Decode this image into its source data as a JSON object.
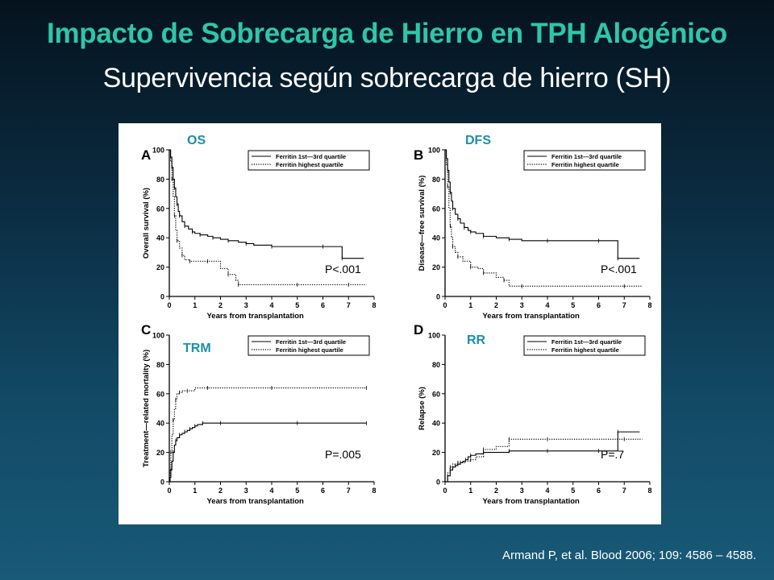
{
  "slide": {
    "title": "Impacto de Sobrecarga de Hierro en TPH Alogénico",
    "subtitle": "Supervivencia según sobrecarga de hierro (SH)",
    "citation": "Armand P, et al. Blood 2006; 109: 4586 – 4588."
  },
  "colors": {
    "title": "#2fc6a8",
    "annotation": "#1a8fb0",
    "background_top": "#05131e",
    "background_bottom": "#185a78"
  },
  "legend": {
    "solid": "Ferritin 1st—3rd quartile",
    "dotted": "Ferritin highest quartile"
  },
  "chart_data": [
    {
      "panel": "A",
      "annotation": "OS",
      "type": "line",
      "xlabel": "Years from transplantation",
      "ylabel": "Overall survival (%)",
      "xlim": [
        0,
        8
      ],
      "ylim": [
        0,
        100
      ],
      "xticks": [
        0,
        1,
        2,
        3,
        4,
        5,
        6,
        7,
        8
      ],
      "yticks": [
        0,
        20,
        40,
        60,
        80,
        100
      ],
      "pvalue": "P<.001",
      "legend_position": "top-right",
      "series": [
        {
          "name": "Ferritin 1st—3rd quartile",
          "style": "solid",
          "x": [
            0,
            0.05,
            0.1,
            0.15,
            0.2,
            0.25,
            0.3,
            0.35,
            0.4,
            0.5,
            0.6,
            0.75,
            0.9,
            1.0,
            1.2,
            1.5,
            1.7,
            2.0,
            2.3,
            2.7,
            3.0,
            3.3,
            4.0,
            5.0,
            6.0,
            6.7,
            6.75,
            7.6
          ],
          "y": [
            100,
            95,
            88,
            80,
            74,
            68,
            63,
            58,
            55,
            51,
            48,
            46,
            44,
            43,
            42,
            41,
            40,
            39,
            38,
            37,
            36,
            35,
            34,
            34,
            34,
            34,
            26,
            26
          ]
        },
        {
          "name": "Ferritin highest quartile",
          "style": "dotted",
          "x": [
            0,
            0.05,
            0.1,
            0.15,
            0.2,
            0.25,
            0.3,
            0.4,
            0.5,
            0.6,
            0.8,
            1.0,
            1.5,
            2.0,
            2.3,
            2.6,
            2.7,
            3.5,
            5.0,
            6.0,
            7.0,
            7.7
          ],
          "y": [
            100,
            92,
            80,
            68,
            55,
            45,
            38,
            33,
            28,
            25,
            24,
            24,
            24,
            19,
            15,
            11,
            8,
            8,
            8,
            8,
            8,
            8
          ]
        }
      ]
    },
    {
      "panel": "B",
      "annotation": "DFS",
      "type": "line",
      "xlabel": "Years from transplantation",
      "ylabel": "Disease—free survival (%)",
      "xlim": [
        0,
        8
      ],
      "ylim": [
        0,
        100
      ],
      "xticks": [
        0,
        1,
        2,
        3,
        4,
        5,
        6,
        7,
        8
      ],
      "yticks": [
        0,
        20,
        40,
        60,
        80,
        100
      ],
      "pvalue": "P<.001",
      "legend_position": "top-right",
      "series": [
        {
          "name": "Ferritin 1st—3rd quartile",
          "style": "solid",
          "x": [
            0,
            0.05,
            0.1,
            0.15,
            0.2,
            0.25,
            0.3,
            0.4,
            0.5,
            0.6,
            0.75,
            0.9,
            1.0,
            1.2,
            1.5,
            2.0,
            2.5,
            3.0,
            4.0,
            5.0,
            6.0,
            6.7,
            6.75,
            7.6
          ],
          "y": [
            100,
            94,
            86,
            78,
            71,
            65,
            60,
            56,
            53,
            50,
            47,
            45,
            44,
            43,
            41,
            40,
            39,
            38,
            38,
            38,
            38,
            38,
            26,
            26
          ]
        },
        {
          "name": "Ferritin highest quartile",
          "style": "dotted",
          "x": [
            0,
            0.05,
            0.1,
            0.15,
            0.2,
            0.25,
            0.3,
            0.4,
            0.5,
            0.7,
            1.0,
            1.3,
            1.5,
            2.0,
            2.3,
            2.5,
            3.0,
            5.0,
            7.0,
            7.7
          ],
          "y": [
            100,
            90,
            75,
            60,
            48,
            40,
            34,
            30,
            27,
            24,
            20,
            19,
            16,
            13,
            11,
            7,
            7,
            7,
            7,
            7
          ]
        }
      ]
    },
    {
      "panel": "C",
      "annotation": "TRM",
      "type": "line",
      "xlabel": "Years from transplantation",
      "ylabel": "Treatment—related mortality (%)",
      "xlim": [
        0,
        8
      ],
      "ylim": [
        0,
        100
      ],
      "xticks": [
        0,
        1,
        2,
        3,
        4,
        5,
        6,
        7,
        8
      ],
      "yticks": [
        0,
        20,
        40,
        60,
        80,
        100
      ],
      "pvalue": "P=.005",
      "legend_position": "top-right",
      "series": [
        {
          "name": "Ferritin 1st—3rd quartile",
          "style": "solid",
          "x": [
            0,
            0.03,
            0.06,
            0.1,
            0.15,
            0.2,
            0.25,
            0.3,
            0.4,
            0.5,
            0.6,
            0.7,
            0.8,
            0.9,
            1.0,
            1.1,
            1.3,
            1.6,
            2.0,
            3.0,
            5.0,
            7.0,
            7.7
          ],
          "y": [
            0,
            3,
            8,
            14,
            20,
            25,
            28,
            30,
            32,
            33,
            34,
            35,
            36,
            37,
            38,
            39,
            40,
            40,
            40,
            40,
            40,
            40,
            40
          ]
        },
        {
          "name": "Ferritin highest quartile",
          "style": "dotted",
          "x": [
            0,
            0.03,
            0.06,
            0.1,
            0.15,
            0.2,
            0.25,
            0.3,
            0.4,
            0.5,
            0.7,
            1.0,
            1.5,
            2.0,
            4.0,
            7.0,
            7.7
          ],
          "y": [
            0,
            8,
            20,
            32,
            42,
            50,
            56,
            60,
            61,
            62,
            62,
            64,
            64,
            64,
            64,
            64,
            64
          ]
        }
      ]
    },
    {
      "panel": "D",
      "annotation": "RR",
      "type": "line",
      "xlabel": "Years from transplantation",
      "ylabel": "Relapse (%)",
      "xlim": [
        0,
        8
      ],
      "ylim": [
        0,
        100
      ],
      "xticks": [
        0,
        1,
        2,
        3,
        4,
        5,
        6,
        7,
        8
      ],
      "yticks": [
        0,
        20,
        40,
        60,
        80,
        100
      ],
      "pvalue": "P=.7",
      "legend_position": "top-right",
      "series": [
        {
          "name": "Ferritin 1st—3rd quartile",
          "style": "solid",
          "x": [
            0,
            0.1,
            0.2,
            0.3,
            0.4,
            0.5,
            0.6,
            0.7,
            0.8,
            0.9,
            1.0,
            1.2,
            1.5,
            2.0,
            2.5,
            3.0,
            4.0,
            5.0,
            6.0,
            6.7,
            6.75,
            7.6
          ],
          "y": [
            0,
            4,
            8,
            10,
            11,
            12,
            13,
            14,
            15,
            17,
            18,
            19,
            20,
            20,
            21,
            21,
            21,
            21,
            21,
            21,
            34,
            34
          ]
        },
        {
          "name": "Ferritin highest quartile",
          "style": "dotted",
          "x": [
            0,
            0.1,
            0.2,
            0.3,
            0.5,
            0.8,
            1.0,
            1.2,
            1.5,
            2.0,
            2.5,
            3.0,
            4.0,
            6.0,
            7.0,
            7.7
          ],
          "y": [
            0,
            6,
            10,
            12,
            13,
            14,
            15,
            17,
            22,
            24,
            29,
            29,
            29,
            29,
            29,
            29
          ]
        }
      ]
    }
  ]
}
